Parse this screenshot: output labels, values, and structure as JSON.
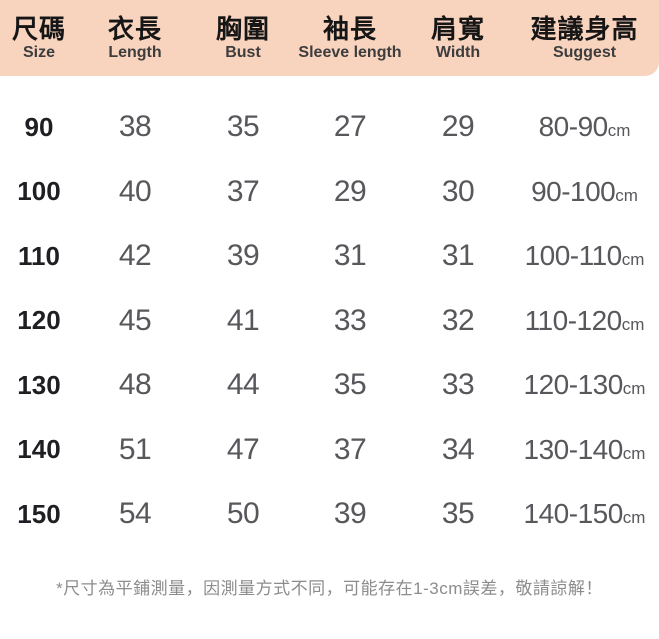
{
  "chart_data": {
    "type": "table",
    "columns": [
      {
        "zh": "尺碼",
        "en": "Size"
      },
      {
        "zh": "衣長",
        "en": "Length"
      },
      {
        "zh": "胸圍",
        "en": "Bust"
      },
      {
        "zh": "袖長",
        "en": "Sleeve length"
      },
      {
        "zh": "肩寬",
        "en": "Width"
      },
      {
        "zh": "建議身高",
        "en": "Suggest"
      }
    ],
    "rows": [
      {
        "size": "90",
        "length": "38",
        "bust": "35",
        "sleeve_length": "27",
        "shoulder_width": "29",
        "suggest_height": "80-90"
      },
      {
        "size": "100",
        "length": "40",
        "bust": "37",
        "sleeve_length": "29",
        "shoulder_width": "30",
        "suggest_height": "90-100"
      },
      {
        "size": "110",
        "length": "42",
        "bust": "39",
        "sleeve_length": "31",
        "shoulder_width": "31",
        "suggest_height": "100-110"
      },
      {
        "size": "120",
        "length": "45",
        "bust": "41",
        "sleeve_length": "33",
        "shoulder_width": "32",
        "suggest_height": "110-120"
      },
      {
        "size": "130",
        "length": "48",
        "bust": "44",
        "sleeve_length": "35",
        "shoulder_width": "33",
        "suggest_height": "120-130"
      },
      {
        "size": "140",
        "length": "51",
        "bust": "47",
        "sleeve_length": "37",
        "shoulder_width": "34",
        "suggest_height": "130-140"
      },
      {
        "size": "150",
        "length": "54",
        "bust": "50",
        "sleeve_length": "39",
        "shoulder_width": "35",
        "suggest_height": "140-150"
      }
    ],
    "unit": "cm",
    "footnote": "*尺寸為平鋪測量，因測量方式不同，可能存在1-3cm誤差，敬請諒解！"
  },
  "colors": {
    "header_bg": "#F8D3BE",
    "size_text": "#1F1F23",
    "value_text": "#57575C",
    "footnote_text": "#8C8C8C"
  }
}
